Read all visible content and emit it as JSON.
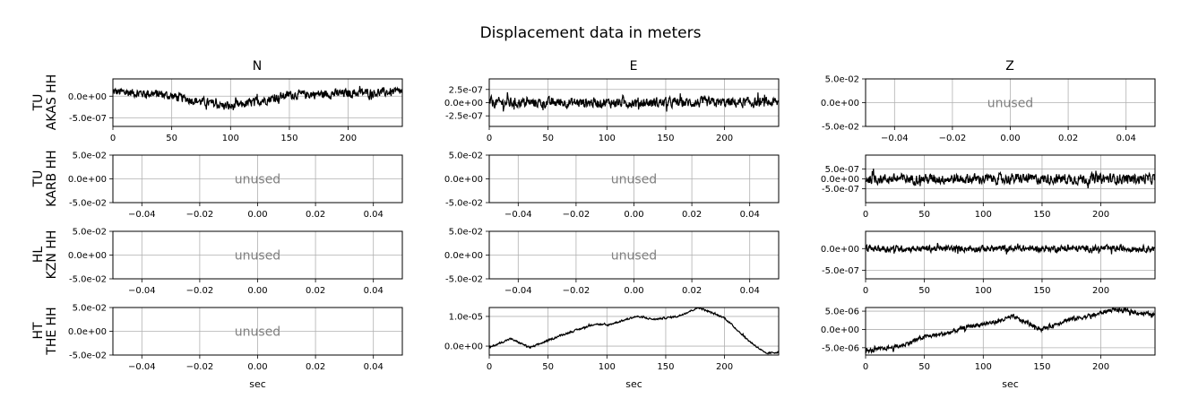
{
  "title": "Displacement data in meters",
  "columns": [
    "N",
    "E",
    "Z"
  ],
  "rows": [
    {
      "network": "TU",
      "station": "AKAS HH"
    },
    {
      "network": "TU",
      "station": "KARB HH"
    },
    {
      "network": "HL",
      "station": "KZN HH"
    },
    {
      "network": "HT",
      "station": "THE HH"
    }
  ],
  "unused_label": "unused",
  "xlabel": "sec",
  "chart_data": [
    {
      "type": "line",
      "row": 0,
      "col": 0,
      "station": "TU AKAS HH",
      "component": "N",
      "xlim": [
        0,
        246
      ],
      "ylim": [
        -7e-07,
        4e-07
      ],
      "xticks": [
        0,
        50,
        100,
        150,
        200
      ],
      "xtick_labels": [
        "0",
        "50",
        "100",
        "150",
        "200"
      ],
      "yticks": [
        0,
        -5e-07
      ],
      "ytick_labels": [
        "0.0e+00",
        "-5.0e-07"
      ],
      "trend": [
        [
          0,
          1e-07
        ],
        [
          40,
          5e-08
        ],
        [
          100,
          -2.5e-07
        ],
        [
          150,
          3e-08
        ],
        [
          246,
          1e-07
        ]
      ],
      "noise_amp": 1.4e-07,
      "grid": true
    },
    {
      "type": "line",
      "row": 0,
      "col": 1,
      "station": "TU AKAS HH",
      "component": "E",
      "xlim": [
        0,
        246
      ],
      "ylim": [
        -4.5e-07,
        4.5e-07
      ],
      "xticks": [
        0,
        50,
        100,
        150,
        200
      ],
      "xtick_labels": [
        "0",
        "50",
        "100",
        "150",
        "200"
      ],
      "yticks": [
        2.5e-07,
        0,
        -2.5e-07
      ],
      "ytick_labels": [
        "2.5e-07",
        "0.0e+00",
        "-2.5e-07"
      ],
      "trend": [
        [
          0,
          0
        ],
        [
          246,
          0
        ]
      ],
      "noise_amp": 1.3e-07,
      "grid": true
    },
    {
      "type": "unused",
      "row": 0,
      "col": 2,
      "xlim": [
        -0.05,
        0.05
      ],
      "ylim": [
        -0.05,
        0.05
      ],
      "xticks": [
        -0.04,
        -0.02,
        0,
        0.02,
        0.04
      ],
      "xtick_labels": [
        "−0.04",
        "−0.02",
        "0.00",
        "0.02",
        "0.04"
      ],
      "yticks": [
        0.05,
        0,
        -0.05
      ],
      "ytick_labels": [
        "5.0e-02",
        "0.0e+00",
        "-5.0e-02"
      ],
      "grid": true
    },
    {
      "type": "unused",
      "row": 1,
      "col": 0,
      "xlim": [
        -0.05,
        0.05
      ],
      "ylim": [
        -0.05,
        0.05
      ],
      "xticks": [
        -0.04,
        -0.02,
        0,
        0.02,
        0.04
      ],
      "xtick_labels": [
        "−0.04",
        "−0.02",
        "0.00",
        "0.02",
        "0.04"
      ],
      "yticks": [
        0.05,
        0,
        -0.05
      ],
      "ytick_labels": [
        "5.0e-02",
        "0.0e+00",
        "-5.0e-02"
      ],
      "grid": true
    },
    {
      "type": "unused",
      "row": 1,
      "col": 1,
      "xlim": [
        -0.05,
        0.05
      ],
      "ylim": [
        -0.05,
        0.05
      ],
      "xticks": [
        -0.04,
        -0.02,
        0,
        0.02,
        0.04
      ],
      "xtick_labels": [
        "−0.04",
        "−0.02",
        "0.00",
        "0.02",
        "0.04"
      ],
      "yticks": [
        0.05,
        0,
        -0.05
      ],
      "ytick_labels": [
        "5.0e-02",
        "0.0e+00",
        "-5.0e-02"
      ],
      "grid": true
    },
    {
      "type": "line",
      "row": 1,
      "col": 2,
      "station": "TU KARB HH",
      "component": "Z",
      "xlim": [
        0,
        246
      ],
      "ylim": [
        -1.2e-06,
        1.2e-06
      ],
      "xticks": [
        0,
        50,
        100,
        150,
        200
      ],
      "xtick_labels": [
        "0",
        "50",
        "100",
        "150",
        "200"
      ],
      "yticks": [
        5e-07,
        0,
        -5e-07
      ],
      "ytick_labels": [
        "5.0e-07",
        "0.0e+00",
        "-5.0e-07"
      ],
      "trend": [
        [
          0,
          0
        ],
        [
          246,
          0
        ]
      ],
      "noise_amp": 3.5e-07,
      "grid": true
    },
    {
      "type": "unused",
      "row": 2,
      "col": 0,
      "xlim": [
        -0.05,
        0.05
      ],
      "ylim": [
        -0.05,
        0.05
      ],
      "xticks": [
        -0.04,
        -0.02,
        0,
        0.02,
        0.04
      ],
      "xtick_labels": [
        "−0.04",
        "−0.02",
        "0.00",
        "0.02",
        "0.04"
      ],
      "yticks": [
        0.05,
        0,
        -0.05
      ],
      "ytick_labels": [
        "5.0e-02",
        "0.0e+00",
        "-5.0e-02"
      ],
      "grid": true
    },
    {
      "type": "unused",
      "row": 2,
      "col": 1,
      "xlim": [
        -0.05,
        0.05
      ],
      "ylim": [
        -0.05,
        0.05
      ],
      "xticks": [
        -0.04,
        -0.02,
        0,
        0.02,
        0.04
      ],
      "xtick_labels": [
        "−0.04",
        "−0.02",
        "0.00",
        "0.02",
        "0.04"
      ],
      "yticks": [
        0.05,
        0,
        -0.05
      ],
      "ytick_labels": [
        "5.0e-02",
        "0.0e+00",
        "-5.0e-02"
      ],
      "grid": true
    },
    {
      "type": "line",
      "row": 2,
      "col": 2,
      "station": "HL KZN HH",
      "component": "Z",
      "xlim": [
        0,
        246
      ],
      "ylim": [
        -7e-07,
        4e-07
      ],
      "xticks": [
        0,
        50,
        100,
        150,
        200
      ],
      "xtick_labels": [
        "0",
        "50",
        "100",
        "150",
        "200"
      ],
      "yticks": [
        0,
        -5e-07
      ],
      "ytick_labels": [
        "0.0e+00",
        "-5.0e-07"
      ],
      "trend": [
        [
          0,
          0
        ],
        [
          246,
          0
        ]
      ],
      "noise_amp": 1e-07,
      "grid": true
    },
    {
      "type": "unused",
      "row": 3,
      "col": 0,
      "xlim": [
        -0.05,
        0.05
      ],
      "ylim": [
        -0.05,
        0.05
      ],
      "xticks": [
        -0.04,
        -0.02,
        0,
        0.02,
        0.04
      ],
      "xtick_labels": [
        "−0.04",
        "−0.02",
        "0.00",
        "0.02",
        "0.04"
      ],
      "yticks": [
        0.05,
        0,
        -0.05
      ],
      "ytick_labels": [
        "5.0e-02",
        "0.0e+00",
        "-5.0e-02"
      ],
      "grid": true
    },
    {
      "type": "line",
      "row": 3,
      "col": 1,
      "station": "HT THE HH",
      "component": "E",
      "xlim": [
        0,
        246
      ],
      "ylim": [
        -3e-06,
        1.3e-05
      ],
      "xticks": [
        0,
        50,
        100,
        150,
        200
      ],
      "xtick_labels": [
        "0",
        "50",
        "100",
        "150",
        "200"
      ],
      "yticks": [
        1e-05,
        0
      ],
      "ytick_labels": [
        "1.0e-05",
        "0.0e+00"
      ],
      "trend": [
        [
          0,
          -5e-07
        ],
        [
          18,
          2.5e-06
        ],
        [
          35,
          -5e-07
        ],
        [
          60,
          3.5e-06
        ],
        [
          90,
          7.5e-06
        ],
        [
          100,
          7e-06
        ],
        [
          125,
          1e-05
        ],
        [
          140,
          9e-06
        ],
        [
          160,
          1e-05
        ],
        [
          178,
          1.3e-05
        ],
        [
          200,
          9.5e-06
        ],
        [
          220,
          2e-06
        ],
        [
          235,
          -2.5e-06
        ],
        [
          246,
          -2e-06
        ]
      ],
      "noise_amp": 4e-07,
      "grid": true
    },
    {
      "type": "line",
      "row": 3,
      "col": 2,
      "station": "HT THE HH",
      "component": "Z",
      "xlim": [
        0,
        246
      ],
      "ylim": [
        -7e-06,
        6e-06
      ],
      "xticks": [
        0,
        50,
        100,
        150,
        200
      ],
      "xtick_labels": [
        "0",
        "50",
        "100",
        "150",
        "200"
      ],
      "yticks": [
        5e-06,
        0,
        -5e-06
      ],
      "ytick_labels": [
        "5.0e-06",
        "0.0e+00",
        "-5.0e-06"
      ],
      "trend": [
        [
          0,
          -6e-06
        ],
        [
          30,
          -4.5e-06
        ],
        [
          50,
          -2e-06
        ],
        [
          70,
          -1e-06
        ],
        [
          90,
          1e-06
        ],
        [
          110,
          2e-06
        ],
        [
          125,
          3.5e-06
        ],
        [
          150,
          0.0
        ],
        [
          170,
          2.5e-06
        ],
        [
          195,
          4e-06
        ],
        [
          210,
          5.5e-06
        ],
        [
          246,
          4e-06
        ]
      ],
      "noise_amp": 8e-07,
      "grid": true
    }
  ]
}
